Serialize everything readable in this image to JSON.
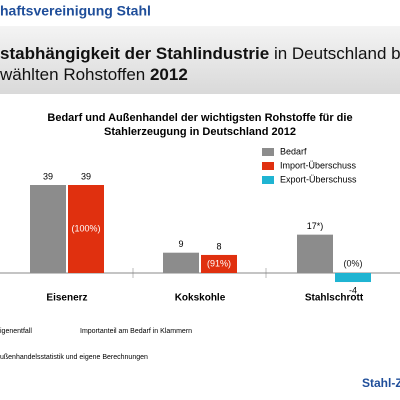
{
  "header": {
    "org": "haftsvereinigung Stahl",
    "title_line1_bold": "stabhängigkeit der Stahlindustrie",
    "title_line1_rest": " in Deutschland bei",
    "title_line2_rest": "wählten Rohstoffen ",
    "title_line2_bold": "2012"
  },
  "chart_data": {
    "type": "bar",
    "title_lines": [
      "Bedarf und Außenhandel der wichtigsten Rohstoffe für die",
      "Stahlerzeugung in Deutschland 2012"
    ],
    "categories": [
      "Eisenerz",
      "Kokskohle",
      "Stahlschrott"
    ],
    "series": [
      {
        "name": "Bedarf",
        "color": "#8c8c8c",
        "values": [
          39,
          9,
          17
        ],
        "value_labels": [
          "39",
          "9",
          "17*)"
        ]
      },
      {
        "name": "Import-Überschuss",
        "color": "#e0300f",
        "values": [
          39,
          8,
          null
        ]
      },
      {
        "name": "Export-Überschuss",
        "color": "#1fb4d2",
        "values": [
          null,
          null,
          -4
        ]
      }
    ],
    "share_labels": [
      "(100%)",
      "(91%)",
      "(0%)"
    ]
  },
  "footnotes": {
    "note1": "igenentfall",
    "note2": "Importanteil am Bedarf in Klammern",
    "source": "ußenhandelsstatistik und eigene Berechnungen"
  },
  "footer": {
    "brand": "Stahl-Z"
  }
}
